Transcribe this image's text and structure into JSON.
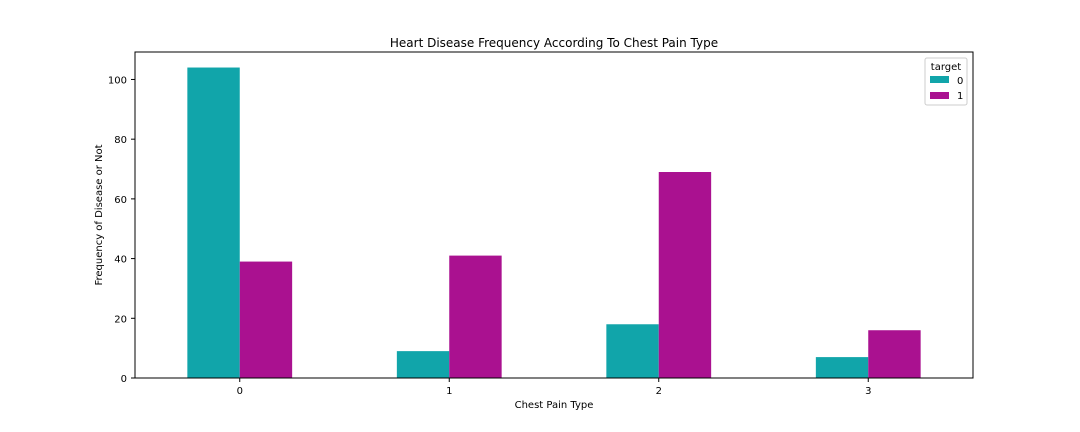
{
  "chart_data": {
    "type": "bar",
    "title": "Heart Disease Frequency According To Chest Pain Type",
    "xlabel": "Chest Pain Type",
    "ylabel": "Frequency of Disease or Not",
    "categories": [
      "0",
      "1",
      "2",
      "3"
    ],
    "series": [
      {
        "name": "0",
        "values": [
          104,
          9,
          18,
          7
        ],
        "color": "#11A5AA"
      },
      {
        "name": "1",
        "values": [
          39,
          41,
          69,
          16
        ],
        "color": "#AA1190"
      }
    ],
    "ylim": [
      0,
      109.2
    ],
    "yticks": [
      0,
      20,
      40,
      60,
      80,
      100
    ],
    "grid": false,
    "legend": {
      "title": "target",
      "placement": "top-right"
    }
  }
}
